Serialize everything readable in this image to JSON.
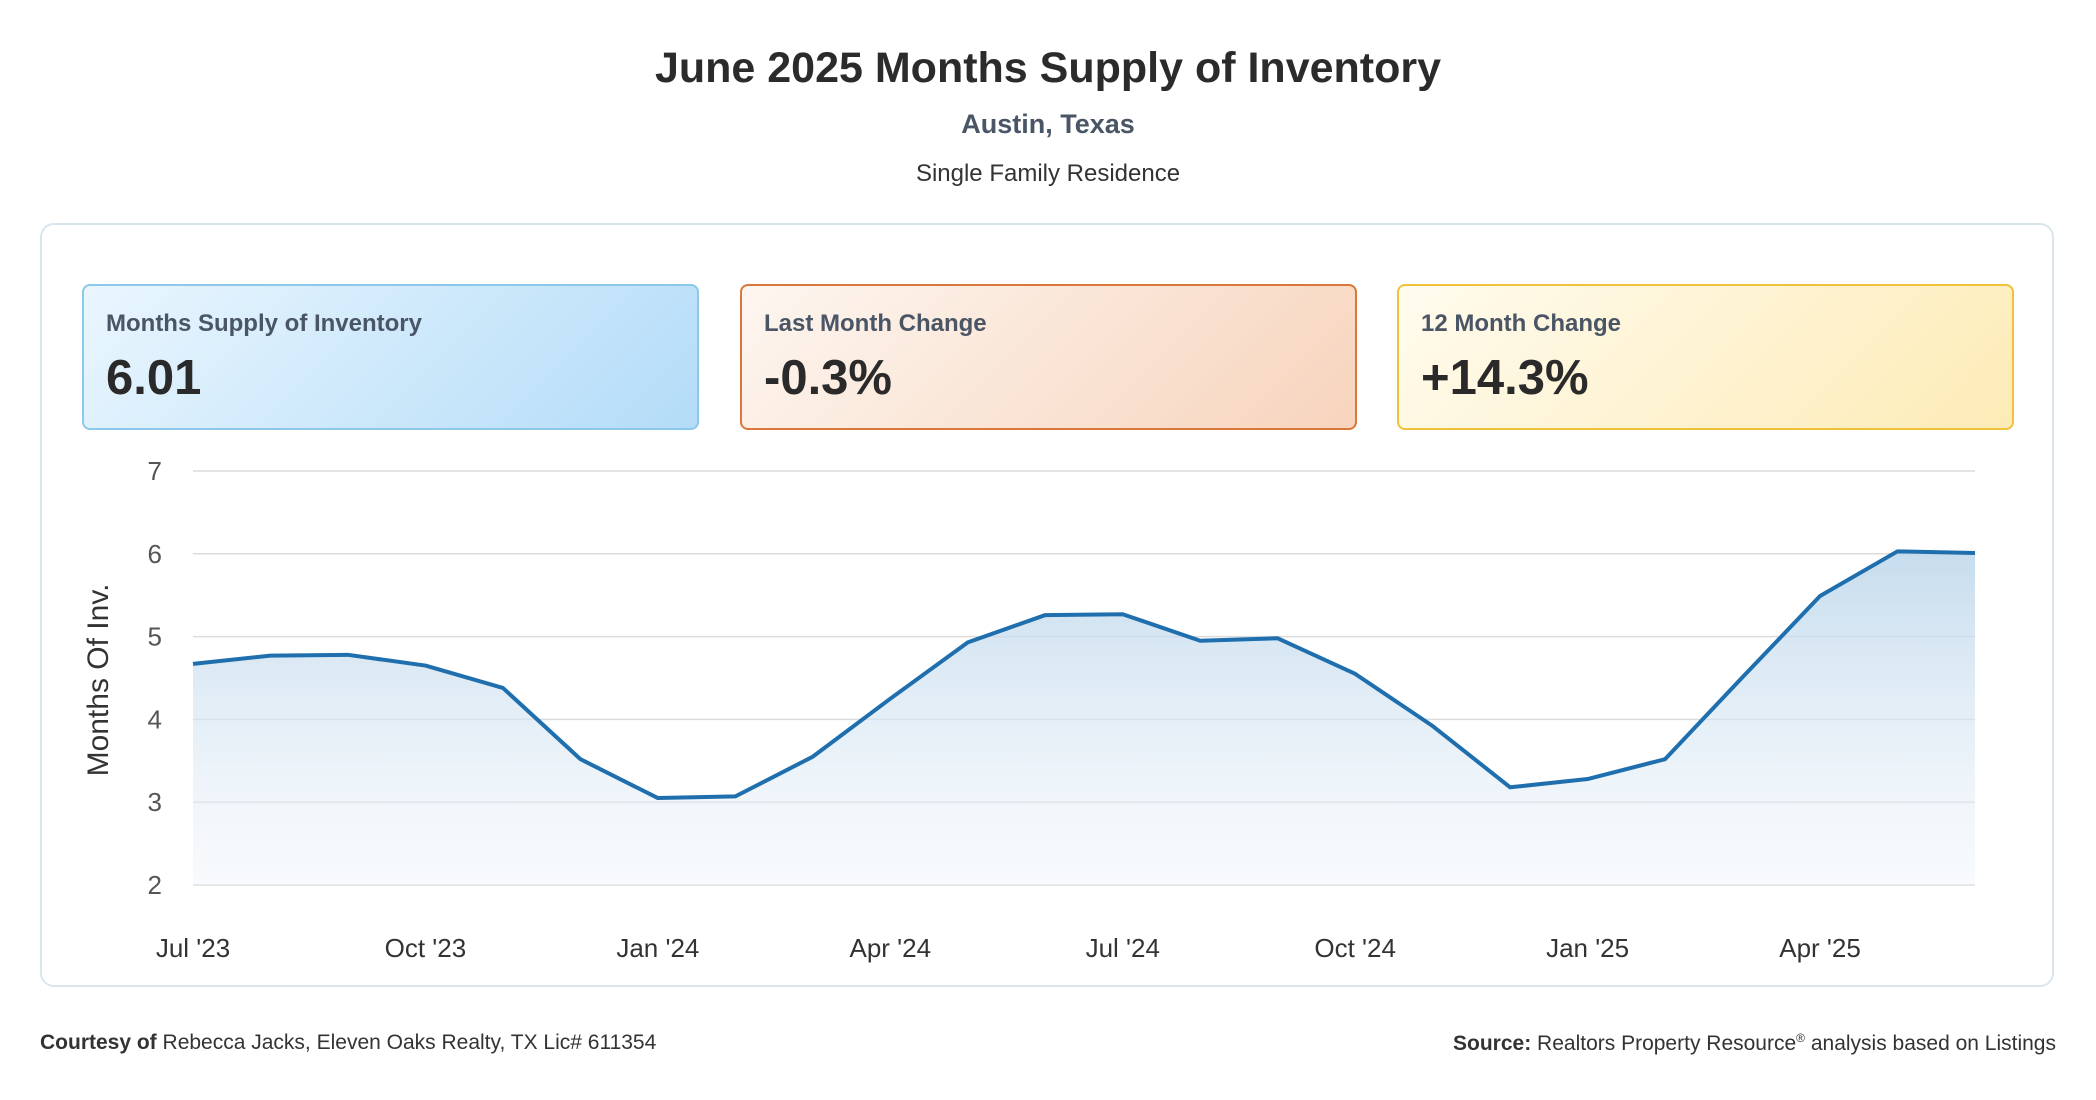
{
  "header": {
    "title": "June 2025 Months Supply of Inventory",
    "location": "Austin, Texas",
    "property_type": "Single Family Residence"
  },
  "cards": [
    {
      "label": "Months Supply of Inventory",
      "value": "6.01",
      "color": "#b3dcf8"
    },
    {
      "label": "Last Month Change",
      "value": "-0.3%",
      "color": "#f7d4bd"
    },
    {
      "label": "12 Month Change",
      "value": "+14.3%",
      "color": "#fdebb6"
    }
  ],
  "chart_data": {
    "type": "area",
    "ylabel": "Months Of Inv.",
    "xlabel": "",
    "ylim": [
      2,
      7
    ],
    "yticks": [
      "2",
      "3",
      "4",
      "5",
      "6",
      "7"
    ],
    "tick_labels": [
      "Jul '23",
      "Oct '23",
      "Jan '24",
      "Apr '24",
      "Jul '24",
      "Oct '24",
      "Jan '25",
      "Apr '25"
    ],
    "tick_positions": [
      0,
      3,
      6,
      9,
      12,
      15,
      18,
      21
    ],
    "x": [
      "Jul 2023",
      "Aug 2023",
      "Sep 2023",
      "Oct 2023",
      "Nov 2023",
      "Dec 2023",
      "Jan 2024",
      "Feb 2024",
      "Mar 2024",
      "Apr 2024",
      "May 2024",
      "Jun 2024",
      "Jul 2024",
      "Aug 2024",
      "Sep 2024",
      "Oct 2024",
      "Nov 2024",
      "Dec 2024",
      "Jan 2025",
      "Feb 2025",
      "Mar 2025",
      "Apr 2025",
      "May 2025",
      "Jun 2025"
    ],
    "series": [
      {
        "name": "",
        "values": [
          4.67,
          4.77,
          4.78,
          4.65,
          4.38,
          3.52,
          3.05,
          3.07,
          3.55,
          4.25,
          4.93,
          5.26,
          5.27,
          4.95,
          4.98,
          4.55,
          3.92,
          3.18,
          3.28,
          3.52,
          4.51,
          5.49,
          6.03,
          6.01
        ],
        "color": "#1f6fae"
      }
    ],
    "grid": true,
    "legend": "none"
  },
  "footer": {
    "courtesy_label": "Courtesy of",
    "courtesy_text": "Rebecca Jacks, Eleven Oaks Realty, TX Lic# 611354",
    "source_label": "Source:",
    "source_text_a": "Realtors Property Resource",
    "source_reg": "®",
    "source_text_b": " analysis based on Listings"
  }
}
